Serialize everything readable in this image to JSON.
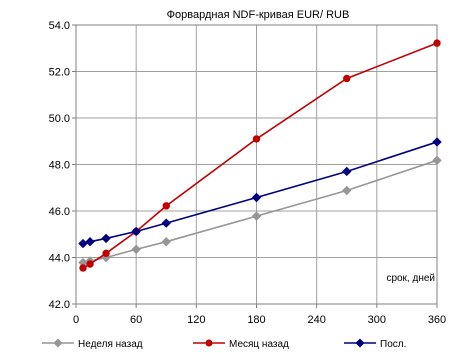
{
  "chart_data": {
    "type": "line",
    "title": "Форвардная NDF-кривая EUR/ RUB",
    "annotation": "срок, дней",
    "xlim": [
      0,
      360
    ],
    "ylim": [
      42.0,
      54.0
    ],
    "x_ticks": [
      0,
      60,
      120,
      180,
      240,
      300,
      360
    ],
    "x_tick_labels": [
      "0",
      "60",
      "120",
      "180",
      "240",
      "300",
      "360"
    ],
    "y_ticks": [
      42.0,
      44.0,
      46.0,
      48.0,
      50.0,
      52.0,
      54.0
    ],
    "y_tick_labels": [
      "42.0",
      "44.0",
      "46.0",
      "48.0",
      "50.0",
      "52.0",
      "54.0"
    ],
    "grid": true,
    "legend_position": "bottom",
    "series": [
      {
        "name": "Неделя назад",
        "color": "#969696",
        "marker": "diamond",
        "x": [
          7,
          14,
          30,
          60,
          90,
          180,
          270,
          360
        ],
        "y": [
          43.78,
          43.85,
          44.0,
          44.35,
          44.68,
          45.78,
          46.88,
          48.18
        ]
      },
      {
        "name": "Месяц назад",
        "color": "#c00000",
        "marker": "circle",
        "x": [
          7,
          14,
          30,
          60,
          90,
          180,
          270,
          360
        ],
        "y": [
          43.55,
          43.72,
          44.18,
          45.12,
          46.22,
          49.1,
          51.7,
          53.22
        ]
      },
      {
        "name": "Посл.",
        "color": "#000080",
        "marker": "diamond",
        "x": [
          7,
          14,
          30,
          60,
          90,
          180,
          270,
          360
        ],
        "y": [
          44.6,
          44.68,
          44.82,
          45.12,
          45.48,
          46.58,
          47.7,
          48.97
        ]
      }
    ]
  }
}
